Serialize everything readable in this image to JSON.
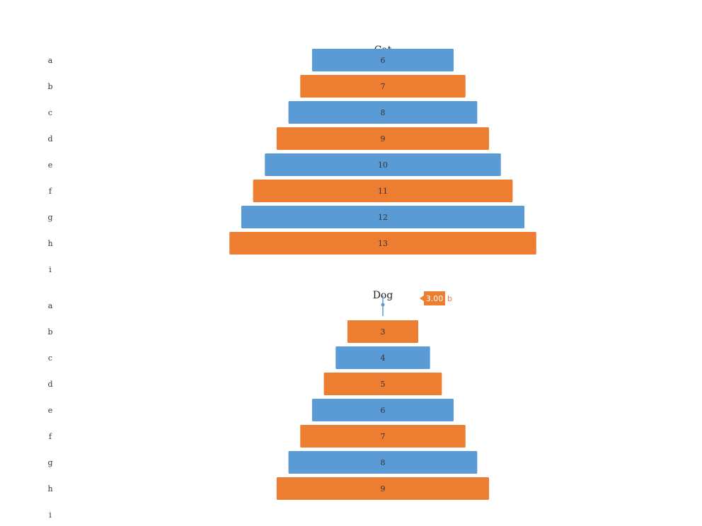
{
  "colors": {
    "blue": "#5B9BD5",
    "orange": "#ED7D31"
  },
  "chart_data": [
    {
      "type": "bar",
      "subtype": "funnel",
      "title": "Cat",
      "categories": [
        "a",
        "b",
        "c",
        "d",
        "e",
        "f",
        "g",
        "h",
        "i"
      ],
      "values": [
        6,
        7,
        8,
        9,
        10,
        11,
        12,
        13,
        null
      ],
      "bar_colors": [
        "blue",
        "orange",
        "blue",
        "orange",
        "blue",
        "orange",
        "blue",
        "orange",
        null
      ]
    },
    {
      "type": "bar",
      "subtype": "funnel",
      "title": "Dog",
      "categories": [
        "a",
        "b",
        "c",
        "d",
        "e",
        "f",
        "g",
        "h",
        "i"
      ],
      "values": [
        0,
        3,
        4,
        5,
        6,
        7,
        8,
        9,
        null
      ],
      "bar_colors": [
        "blue",
        "orange",
        "blue",
        "orange",
        "blue",
        "orange",
        "blue",
        "orange",
        null
      ],
      "tooltip": {
        "value": "3.00",
        "category": "b"
      }
    }
  ]
}
